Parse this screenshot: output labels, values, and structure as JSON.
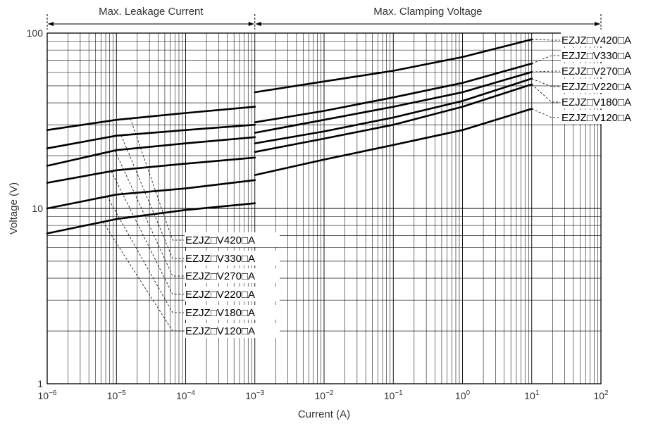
{
  "chart_data": {
    "type": "line",
    "xlabel": "Current (A)",
    "ylabel": "Voltage (V)",
    "x_scale": "log",
    "y_scale": "log",
    "xlim": [
      1e-06,
      100
    ],
    "ylim": [
      1,
      100
    ],
    "grid": true,
    "x_ticks": [
      {
        "base": "10",
        "exp": "−6",
        "value": 1e-06
      },
      {
        "base": "10",
        "exp": "−5",
        "value": 1e-05
      },
      {
        "base": "10",
        "exp": "−4",
        "value": 0.0001
      },
      {
        "base": "10",
        "exp": "−3",
        "value": 0.001
      },
      {
        "base": "10",
        "exp": "−2",
        "value": 0.01
      },
      {
        "base": "10",
        "exp": "−1",
        "value": 0.1
      },
      {
        "base": "10",
        "exp": "0",
        "value": 1
      },
      {
        "base": "10",
        "exp": "1",
        "value": 10
      },
      {
        "base": "10",
        "exp": "2",
        "value": 100
      }
    ],
    "y_ticks": [
      {
        "label": "1",
        "value": 1
      },
      {
        "label": "10",
        "value": 10
      },
      {
        "label": "100",
        "value": 100
      }
    ],
    "regions": [
      {
        "label": "Max. Leakage Current",
        "x_range": [
          1e-06,
          0.001
        ]
      },
      {
        "label": "Max. Clamping Voltage",
        "x_range": [
          0.001,
          100
        ]
      }
    ],
    "series": [
      {
        "name": "EZJZ□V420□A",
        "leakage": [
          [
            1e-06,
            28
          ],
          [
            1e-05,
            32
          ],
          [
            0.0001,
            35
          ],
          [
            0.001,
            38
          ]
        ],
        "clamping": [
          [
            0.001,
            46
          ],
          [
            0.01,
            53
          ],
          [
            0.1,
            61
          ],
          [
            1,
            73
          ],
          [
            10,
            92
          ]
        ]
      },
      {
        "name": "EZJZ□V330□A",
        "leakage": [
          [
            1e-06,
            22
          ],
          [
            1e-05,
            26
          ],
          [
            0.0001,
            28
          ],
          [
            0.001,
            30
          ]
        ],
        "clamping": [
          [
            0.001,
            31
          ],
          [
            0.01,
            36
          ],
          [
            0.1,
            43
          ],
          [
            1,
            52
          ],
          [
            10,
            67
          ]
        ]
      },
      {
        "name": "EZJZ□V270□A",
        "leakage": [
          [
            1e-06,
            17.5
          ],
          [
            1e-05,
            21.5
          ],
          [
            0.0001,
            23.5
          ],
          [
            0.001,
            25.5
          ]
        ],
        "clamping": [
          [
            0.001,
            27
          ],
          [
            0.01,
            32
          ],
          [
            0.1,
            38
          ],
          [
            1,
            46
          ],
          [
            10,
            60
          ]
        ]
      },
      {
        "name": "EZJZ□V220□A",
        "leakage": [
          [
            1e-06,
            14
          ],
          [
            1e-05,
            16.5
          ],
          [
            0.0001,
            18
          ],
          [
            0.001,
            19.5
          ]
        ],
        "clamping": [
          [
            0.001,
            23.5
          ],
          [
            0.01,
            27.5
          ],
          [
            0.1,
            33
          ],
          [
            1,
            41
          ],
          [
            10,
            55
          ]
        ]
      },
      {
        "name": "EZJZ□V180□A",
        "leakage": [
          [
            1e-06,
            10
          ],
          [
            1e-05,
            12
          ],
          [
            0.0001,
            13
          ],
          [
            0.001,
            14.5
          ]
        ],
        "clamping": [
          [
            0.001,
            21
          ],
          [
            0.01,
            25
          ],
          [
            0.1,
            30
          ],
          [
            1,
            38
          ],
          [
            10,
            51
          ]
        ]
      },
      {
        "name": "EZJZ□V120□A",
        "leakage": [
          [
            1e-06,
            7.2
          ],
          [
            1e-05,
            8.7
          ],
          [
            0.0001,
            9.8
          ],
          [
            0.001,
            10.7
          ]
        ],
        "clamping": [
          [
            0.001,
            15.5
          ],
          [
            0.01,
            19
          ],
          [
            0.1,
            23
          ],
          [
            1,
            28
          ],
          [
            10,
            37
          ]
        ]
      }
    ]
  }
}
